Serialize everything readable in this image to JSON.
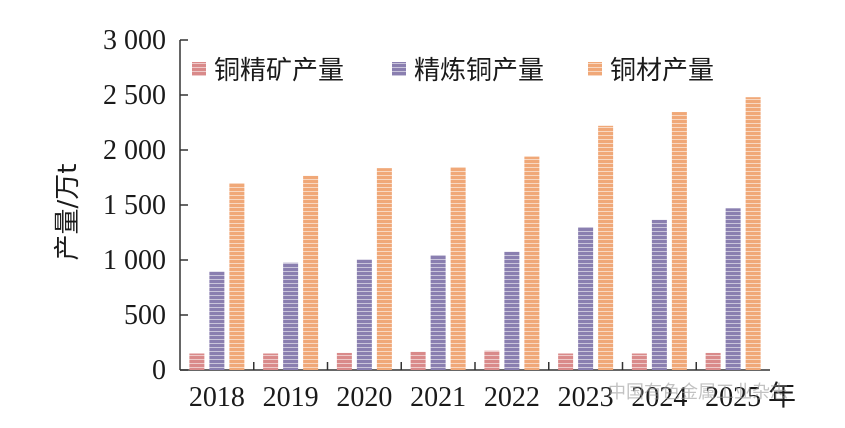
{
  "chart_data": {
    "type": "bar",
    "title": "",
    "xlabel": "年",
    "ylabel": "产量/万t",
    "ylim": [
      0,
      3000
    ],
    "yticks": [
      0,
      500,
      1000,
      1500,
      2000,
      2500,
      3000
    ],
    "ytick_labels": [
      "0",
      "500",
      "1 000",
      "1 500",
      "2 000",
      "2 500",
      "3 000"
    ],
    "grid": false,
    "legend_position": "top",
    "categories": [
      "2018",
      "2019",
      "2020",
      "2021",
      "2022",
      "2023",
      "2024",
      "2025"
    ],
    "series": [
      {
        "name": "铜精矿产量",
        "color": "#d98a8a",
        "values": [
          150,
          150,
          155,
          165,
          175,
          150,
          150,
          155
        ]
      },
      {
        "name": "精炼铜产量",
        "color": "#8a7fb0",
        "values": [
          895,
          975,
          1005,
          1045,
          1075,
          1300,
          1365,
          1470
        ]
      },
      {
        "name": "铜材产量",
        "color": "#f0a878",
        "values": [
          1700,
          1765,
          1835,
          1845,
          1940,
          2220,
          2345,
          2480
        ]
      }
    ]
  },
  "watermark": "中国有色金属工业杂志"
}
